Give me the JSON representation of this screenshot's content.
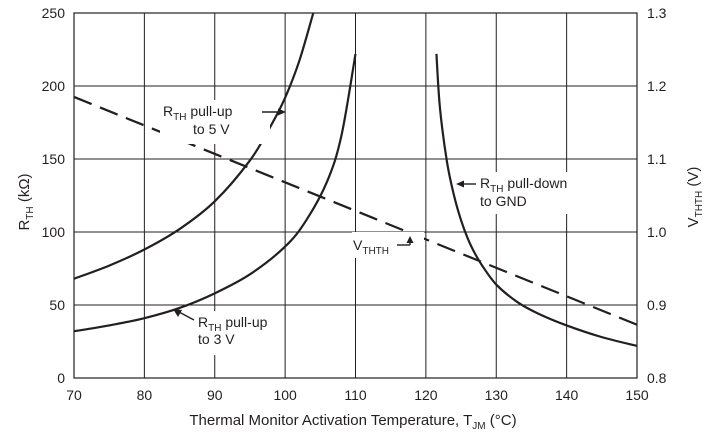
{
  "chart_data": {
    "type": "line",
    "x_ticks": [
      "70",
      "80",
      "90",
      "100",
      "110",
      "120",
      "130",
      "140",
      "150"
    ],
    "xlim": [
      70,
      150
    ],
    "ylim_left": [
      0,
      250
    ],
    "yticks_left": [
      "0",
      "50",
      "100",
      "150",
      "200",
      "250"
    ],
    "ylim_right": [
      0.8,
      1.3
    ],
    "yticks_right": [
      "0.8",
      "0.9",
      "1.0",
      "1.1",
      "1.2",
      "1.3"
    ],
    "xlabel": {
      "main": "Thermal Monitor Activation Temperature, T",
      "sub": "JM",
      "tail": " (°C)"
    },
    "ylabel_left": {
      "main": "R",
      "sub": "TH",
      "tail": "  (kΩ)"
    },
    "ylabel_right": {
      "main": "V",
      "sub": "THTH",
      "tail": "  (V)"
    },
    "grid": true,
    "series": [
      {
        "name": "RTH pull-up to 5 V",
        "axis": "left",
        "style": "solid",
        "x": [
          70,
          75,
          80,
          85,
          90,
          95,
          98,
          100,
          102,
          104
        ],
        "y": [
          68,
          77,
          88,
          102,
          121,
          149,
          173,
          192,
          217,
          250
        ]
      },
      {
        "name": "RTH pull-up to 3 V",
        "axis": "left",
        "style": "solid",
        "x": [
          70,
          75,
          80,
          85,
          90,
          95,
          100,
          103,
          106,
          108,
          110
        ],
        "y": [
          32,
          36,
          41,
          48,
          58,
          71,
          90,
          108,
          135,
          166,
          222
        ]
      },
      {
        "name": "RTH pull-down to GND",
        "axis": "left",
        "style": "solid",
        "x": [
          121.5,
          122,
          123,
          124,
          125,
          126,
          127,
          128,
          130,
          133,
          136,
          140,
          145,
          150
        ],
        "y": [
          222,
          185,
          148,
          125,
          108,
          95,
          85,
          77,
          64,
          52,
          44,
          36,
          28,
          22
        ]
      },
      {
        "name": "VTHTH",
        "axis": "right",
        "style": "dashed",
        "x": [
          70,
          150
        ],
        "y": [
          1.185,
          0.873
        ]
      }
    ],
    "annotations": [
      {
        "main": "R",
        "sub": "TH",
        "tail": " pull-up",
        "line2": "to 5 V"
      },
      {
        "main": "R",
        "sub": "TH",
        "tail": " pull-up",
        "line2": "to 3 V"
      },
      {
        "main": "R",
        "sub": "TH",
        "tail": " pull-down",
        "line2": "to GND"
      },
      {
        "main": "V",
        "sub": "THTH",
        "tail": "",
        "line2": ""
      }
    ]
  }
}
